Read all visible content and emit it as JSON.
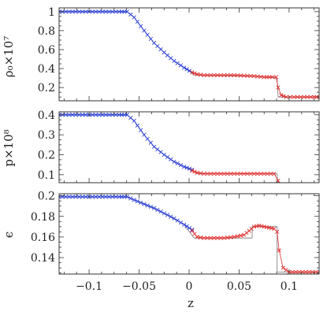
{
  "chart_data": [
    {
      "type": "line",
      "ylabel": "ρ₀×10⁷",
      "ylim": [
        0.06,
        1.04
      ],
      "yticks": [
        0.2,
        0.4,
        0.6,
        0.8,
        1.0
      ],
      "ytick_labels": [
        "0.2",
        "0.4",
        "0.6",
        "0.8",
        "1"
      ],
      "series": [
        {
          "style": "solid",
          "color": "#777777",
          "x": [
            -0.13,
            -0.062,
            -0.055,
            -0.045,
            -0.035,
            -0.025,
            -0.015,
            -0.005,
            0.003,
            0.005,
            0.065,
            0.088,
            0.089,
            0.13
          ],
          "y": [
            1.0,
            1.0,
            0.94,
            0.8,
            0.67,
            0.57,
            0.48,
            0.41,
            0.35,
            0.33,
            0.32,
            0.3,
            0.1,
            0.1
          ]
        },
        {
          "style": "cross",
          "color": "#2a3fd6",
          "x": [
            -0.13,
            -0.12,
            -0.11,
            -0.1,
            -0.09,
            -0.08,
            -0.07,
            -0.062,
            -0.055,
            -0.045,
            -0.035,
            -0.025,
            -0.015,
            -0.005,
            0.003
          ],
          "y": [
            1.0,
            1.0,
            1.0,
            1.0,
            1.0,
            1.0,
            1.0,
            1.0,
            0.94,
            0.8,
            0.67,
            0.57,
            0.48,
            0.41,
            0.36
          ]
        },
        {
          "style": "cross",
          "color": "#e03030",
          "x": [
            0.003,
            0.008,
            0.015,
            0.025,
            0.035,
            0.045,
            0.055,
            0.065,
            0.075,
            0.083,
            0.087,
            0.089,
            0.092,
            0.097,
            0.105,
            0.115,
            0.125,
            0.13
          ],
          "y": [
            0.36,
            0.34,
            0.33,
            0.33,
            0.33,
            0.33,
            0.325,
            0.32,
            0.31,
            0.31,
            0.31,
            0.2,
            0.12,
            0.1,
            0.1,
            0.1,
            0.1,
            0.1
          ]
        }
      ]
    },
    {
      "type": "line",
      "ylabel": "p×10⁸",
      "ylim": [
        0.06,
        0.415
      ],
      "yticks": [
        0.1,
        0.2,
        0.3,
        0.4
      ],
      "ytick_labels": [
        "0.1",
        "0.2",
        "0.3",
        "0.4"
      ],
      "series": [
        {
          "style": "solid",
          "color": "#777777",
          "x": [
            -0.13,
            -0.062,
            -0.055,
            -0.045,
            -0.035,
            -0.025,
            -0.015,
            -0.005,
            0.003,
            0.008,
            0.088,
            0.089,
            0.13
          ],
          "y": [
            0.4,
            0.4,
            0.37,
            0.3,
            0.24,
            0.2,
            0.165,
            0.14,
            0.12,
            0.105,
            0.105,
            0.025,
            0.025
          ]
        },
        {
          "style": "cross",
          "color": "#2a3fd6",
          "x": [
            -0.13,
            -0.12,
            -0.11,
            -0.1,
            -0.09,
            -0.08,
            -0.07,
            -0.062,
            -0.055,
            -0.045,
            -0.035,
            -0.025,
            -0.015,
            -0.005,
            0.003
          ],
          "y": [
            0.4,
            0.4,
            0.4,
            0.4,
            0.4,
            0.4,
            0.4,
            0.4,
            0.37,
            0.3,
            0.24,
            0.2,
            0.165,
            0.14,
            0.125
          ]
        },
        {
          "style": "cross",
          "color": "#e03030",
          "x": [
            0.003,
            0.008,
            0.015,
            0.025,
            0.035,
            0.045,
            0.055,
            0.065,
            0.075,
            0.085,
            0.089,
            0.092,
            0.097,
            0.105,
            0.115,
            0.125,
            0.13
          ],
          "y": [
            0.12,
            0.11,
            0.105,
            0.105,
            0.105,
            0.105,
            0.105,
            0.105,
            0.105,
            0.105,
            0.07,
            0.035,
            0.025,
            0.025,
            0.025,
            0.025,
            0.025
          ]
        }
      ]
    },
    {
      "type": "line",
      "ylabel": "ϵ",
      "xlabel": "z",
      "ylim": [
        0.124,
        0.202
      ],
      "xlim": [
        -0.13,
        0.13
      ],
      "yticks": [
        0.14,
        0.16,
        0.18,
        0.2
      ],
      "ytick_labels": [
        "0.14",
        "0.16",
        "0.18",
        "0.2"
      ],
      "xticks": [
        -0.1,
        -0.05,
        0,
        0.05,
        0.1
      ],
      "xtick_labels": [
        "−0.1",
        "−0.05",
        "0",
        "0.05",
        "0.1"
      ],
      "series": [
        {
          "style": "solid",
          "color": "#777777",
          "x": [
            -0.13,
            -0.062,
            -0.045,
            -0.025,
            -0.005,
            0.005,
            0.063,
            0.063,
            0.088,
            0.088,
            0.13
          ],
          "y": [
            0.199,
            0.199,
            0.192,
            0.183,
            0.172,
            0.159,
            0.159,
            0.17,
            0.17,
            0.126,
            0.126
          ]
        },
        {
          "style": "cross",
          "color": "#2a3fd6",
          "x": [
            -0.13,
            -0.12,
            -0.11,
            -0.1,
            -0.09,
            -0.08,
            -0.07,
            -0.062,
            -0.055,
            -0.045,
            -0.035,
            -0.025,
            -0.015,
            -0.005,
            0.003
          ],
          "y": [
            0.199,
            0.199,
            0.199,
            0.199,
            0.199,
            0.199,
            0.199,
            0.199,
            0.196,
            0.192,
            0.188,
            0.183,
            0.178,
            0.172,
            0.167
          ]
        },
        {
          "style": "cross",
          "color": "#e03030",
          "x": [
            0.003,
            0.008,
            0.015,
            0.025,
            0.035,
            0.045,
            0.055,
            0.06,
            0.065,
            0.07,
            0.075,
            0.08,
            0.085,
            0.088,
            0.09,
            0.094,
            0.1,
            0.11,
            0.12,
            0.13
          ],
          "y": [
            0.166,
            0.16,
            0.159,
            0.159,
            0.159,
            0.16,
            0.162,
            0.166,
            0.17,
            0.171,
            0.17,
            0.169,
            0.168,
            0.165,
            0.147,
            0.13,
            0.126,
            0.126,
            0.126,
            0.126
          ]
        }
      ]
    }
  ]
}
